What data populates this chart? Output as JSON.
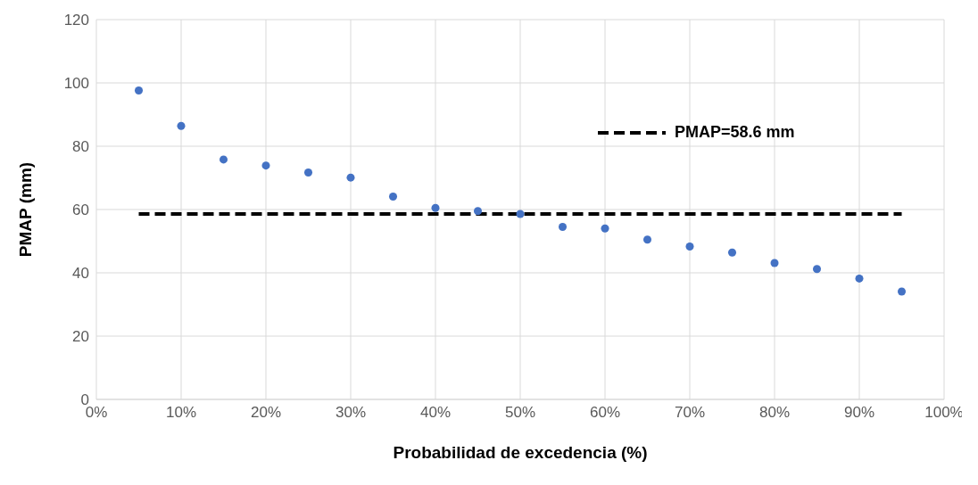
{
  "chart_data": {
    "type": "scatter",
    "xlabel": "Probabilidad de excedencia  (%)",
    "ylabel": "PMAP (mm)",
    "xlim": [
      0,
      100
    ],
    "xticks": [
      {
        "value": 0,
        "label": "0%"
      },
      {
        "value": 10,
        "label": "10%"
      },
      {
        "value": 20,
        "label": "20%"
      },
      {
        "value": 30,
        "label": "30%"
      },
      {
        "value": 40,
        "label": "40%"
      },
      {
        "value": 50,
        "label": "50%"
      },
      {
        "value": 60,
        "label": "60%"
      },
      {
        "value": 70,
        "label": "70%"
      },
      {
        "value": 80,
        "label": "80%"
      },
      {
        "value": 90,
        "label": "90%"
      },
      {
        "value": 100,
        "label": "100%"
      }
    ],
    "ylim": [
      0,
      120
    ],
    "yticks": [
      0,
      20,
      40,
      60,
      80,
      100,
      120
    ],
    "grid": true,
    "legend": "top right",
    "series": [
      {
        "color": "#4472c4",
        "marker": "circle",
        "x": [
          5,
          10,
          15,
          20,
          25,
          30,
          35,
          40,
          45,
          50,
          55,
          60,
          65,
          70,
          75,
          80,
          85,
          90,
          95
        ],
        "values": [
          97.6,
          86.4,
          75.8,
          73.9,
          71.7,
          70.1,
          64.1,
          60.5,
          59.5,
          58.6,
          54.5,
          54.0,
          50.5,
          48.3,
          46.4,
          43.1,
          41.2,
          38.2,
          34.1
        ]
      },
      {
        "type": "line",
        "name": "PMAP=58.6 mm",
        "color": "#000000",
        "line_style": "dashed",
        "marker": "none",
        "x": [
          5,
          95
        ],
        "values": [
          58.6,
          58.6
        ]
      }
    ]
  }
}
